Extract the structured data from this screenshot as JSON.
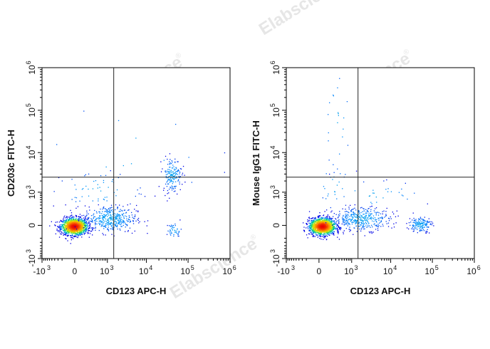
{
  "watermark": {
    "text": "Elabscience",
    "mark": "®"
  },
  "chart_data": [
    {
      "type": "scatter",
      "subtype": "flow-cytometry-density-dot-plot",
      "xlabel": "CD123 APC-H",
      "ylabel": "CD203c FITC-H",
      "x_scale": "biexponential",
      "y_scale": "biexponential",
      "xlim": [
        -1000,
        1000000
      ],
      "ylim": [
        -1000,
        1000000
      ],
      "x_ticks": [
        {
          "base": "-10",
          "exp": "3",
          "value": -1000
        },
        {
          "base": "0",
          "exp": "",
          "value": 0
        },
        {
          "base": "10",
          "exp": "3",
          "value": 1000
        },
        {
          "base": "10",
          "exp": "4",
          "value": 10000
        },
        {
          "base": "10",
          "exp": "5",
          "value": 100000
        },
        {
          "base": "10",
          "exp": "6",
          "value": 1000000
        }
      ],
      "y_ticks": [
        {
          "base": "-10",
          "exp": "3",
          "value": -1000
        },
        {
          "base": "0",
          "exp": "",
          "value": 0
        },
        {
          "base": "10",
          "exp": "3",
          "value": 1000
        },
        {
          "base": "10",
          "exp": "4",
          "value": 10000
        },
        {
          "base": "10",
          "exp": "5",
          "value": 100000
        },
        {
          "base": "10",
          "exp": "6",
          "value": 1000000
        }
      ],
      "quadrant_gate": {
        "x": 1500,
        "y": 2500
      },
      "populations": [
        {
          "name_visible": false,
          "x_center": 200,
          "y_center": 600,
          "density": "high"
        },
        {
          "name_visible": false,
          "x_center": 3000,
          "y_center": 900,
          "density": "medium"
        },
        {
          "name_visible": false,
          "x_center": 30000,
          "y_center": 5000,
          "density": "medium"
        },
        {
          "name_visible": false,
          "x_center": 35000,
          "y_center": 600,
          "density": "low"
        }
      ]
    },
    {
      "type": "scatter",
      "subtype": "flow-cytometry-density-dot-plot",
      "xlabel": "CD123 APC-H",
      "ylabel": "Mouse IgG1 FITC-H",
      "x_scale": "biexponential",
      "y_scale": "biexponential",
      "xlim": [
        -1000,
        1000000
      ],
      "ylim": [
        -1000,
        1000000
      ],
      "x_ticks": [
        {
          "base": "-10",
          "exp": "3",
          "value": -1000
        },
        {
          "base": "0",
          "exp": "",
          "value": 0
        },
        {
          "base": "10",
          "exp": "3",
          "value": 1000
        },
        {
          "base": "10",
          "exp": "4",
          "value": 10000
        },
        {
          "base": "10",
          "exp": "5",
          "value": 100000
        },
        {
          "base": "10",
          "exp": "6",
          "value": 1000000
        }
      ],
      "y_ticks": [
        {
          "base": "-10",
          "exp": "3",
          "value": -1000
        },
        {
          "base": "0",
          "exp": "",
          "value": 0
        },
        {
          "base": "10",
          "exp": "3",
          "value": 1000
        },
        {
          "base": "10",
          "exp": "4",
          "value": 10000
        },
        {
          "base": "10",
          "exp": "5",
          "value": 100000
        },
        {
          "base": "10",
          "exp": "6",
          "value": 1000000
        }
      ],
      "quadrant_gate": {
        "x": 1500,
        "y": 2500
      },
      "populations": [
        {
          "name_visible": false,
          "x_center": 200,
          "y_center": 600,
          "density": "high"
        },
        {
          "name_visible": false,
          "x_center": 3000,
          "y_center": 900,
          "density": "medium"
        },
        {
          "name_visible": false,
          "x_center": 35000,
          "y_center": 700,
          "density": "medium"
        }
      ]
    }
  ]
}
